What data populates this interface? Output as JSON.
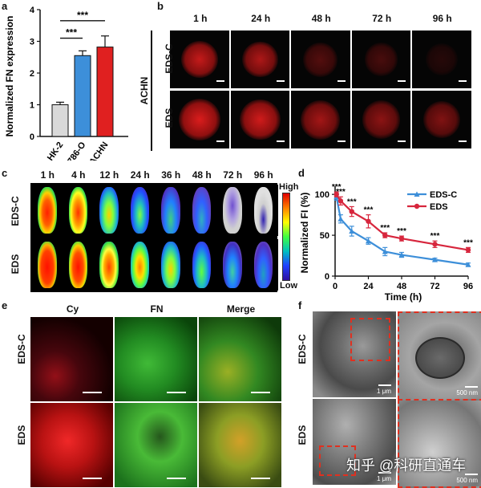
{
  "panel_a": {
    "label": "a",
    "ylabel": "Normalized FN expression",
    "sig": "***",
    "chart_data": {
      "type": "bar",
      "categories": [
        "HK-2",
        "786-O",
        "ACHN"
      ],
      "values": [
        1.0,
        2.55,
        2.82
      ],
      "errors": [
        0.08,
        0.15,
        0.35
      ],
      "colors": [
        "#d9d9d9",
        "#3d8fd9",
        "#e02020"
      ],
      "ylim": [
        0,
        4
      ],
      "yticks": [
        "0",
        "1",
        "2",
        "3",
        "4"
      ],
      "ylabel": "Normalized FN expression",
      "significance": [
        {
          "from": "HK-2",
          "to": "786-O",
          "label": "***"
        },
        {
          "from": "HK-2",
          "to": "ACHN",
          "label": "***"
        }
      ]
    }
  },
  "panel_b": {
    "label": "b",
    "times": [
      "1 h",
      "24 h",
      "48 h",
      "72 h",
      "96 h"
    ],
    "rows": [
      "EDS-C",
      "EDS"
    ],
    "group": "ACHN",
    "intensity": [
      [
        0.85,
        0.75,
        0.35,
        0.3,
        0.15
      ],
      [
        0.95,
        0.9,
        0.7,
        0.6,
        0.55
      ]
    ]
  },
  "panel_c": {
    "label": "c",
    "times": [
      "1 h",
      "4 h",
      "12 h",
      "24 h",
      "36 h",
      "48 h",
      "72 h",
      "96 h"
    ],
    "rows": [
      "EDS-C",
      "EDS"
    ],
    "high": "High",
    "low": "Low"
  },
  "panel_d": {
    "label": "d",
    "chart_data": {
      "type": "line",
      "xlabel": "Time (h)",
      "ylabel": "Normalized FI (%)",
      "xticks": [
        "0",
        "24",
        "48",
        "72",
        "96"
      ],
      "yticks": [
        "0",
        "50",
        "100"
      ],
      "xlim": [
        0,
        96
      ],
      "ylim": [
        0,
        110
      ],
      "x": [
        1,
        4,
        12,
        24,
        36,
        48,
        72,
        96
      ],
      "series": [
        {
          "name": "EDS-C",
          "color": "#3d8fd9",
          "values": [
            97,
            70,
            55,
            43,
            30,
            26,
            20,
            14
          ],
          "errors": [
            4,
            5,
            6,
            4,
            5,
            3,
            2,
            2
          ]
        },
        {
          "name": "EDS",
          "color": "#d7263d",
          "values": [
            100,
            92,
            79,
            67,
            50,
            46,
            39,
            32
          ],
          "errors": [
            3,
            5,
            6,
            8,
            3,
            3,
            4,
            3
          ]
        }
      ],
      "annotations": [
        "***",
        "***",
        "***",
        "***",
        "***",
        "***",
        "***",
        "***"
      ]
    }
  },
  "panel_e": {
    "label": "e",
    "cols": [
      "Cy",
      "FN",
      "Merge"
    ],
    "rows": [
      "EDS-C",
      "EDS"
    ]
  },
  "panel_f": {
    "label": "f",
    "rows": [
      "EDS-C",
      "EDS"
    ],
    "scale_left": "1 μm",
    "scale_right": "500 nm",
    "watermark": "知乎 @科研直通车"
  }
}
